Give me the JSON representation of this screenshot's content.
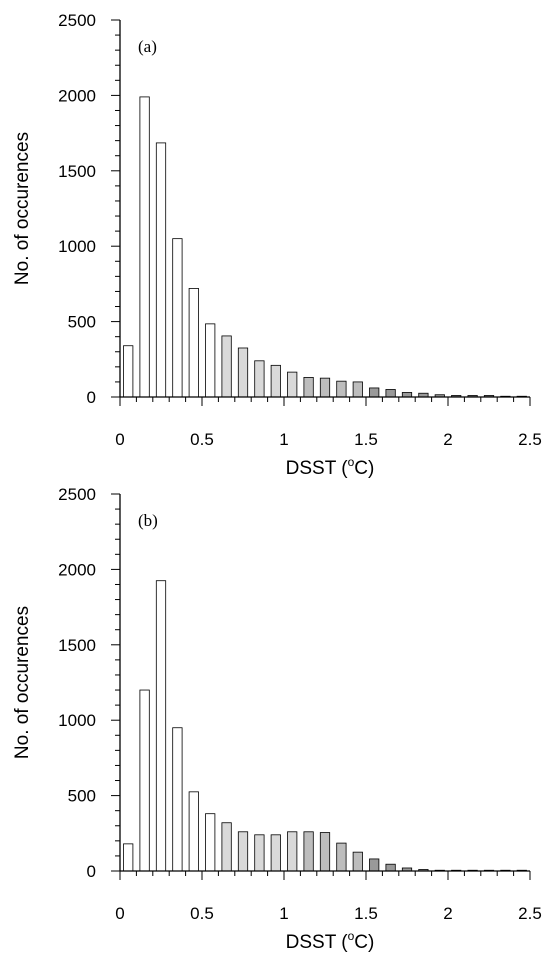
{
  "chart_data": [
    {
      "type": "bar",
      "annotation": "(a)",
      "xlabel_main": "DSST (",
      "xlabel_sup": "o",
      "xlabel_end": "C)",
      "ylabel": "No. of occurences",
      "xlim": [
        0,
        2.5
      ],
      "ylim": [
        0,
        2500
      ],
      "bin_width": 0.1,
      "x": [
        0.05,
        0.15,
        0.25,
        0.35,
        0.45,
        0.55,
        0.65,
        0.75,
        0.85,
        0.95,
        1.05,
        1.15,
        1.25,
        1.35,
        1.45,
        1.55,
        1.65,
        1.75,
        1.85,
        1.95,
        2.05,
        2.15,
        2.25,
        2.35,
        2.45
      ],
      "values": [
        340,
        1990,
        1685,
        1050,
        720,
        485,
        405,
        325,
        240,
        210,
        165,
        130,
        125,
        105,
        100,
        60,
        50,
        30,
        25,
        15,
        10,
        10,
        10,
        5,
        5
      ],
      "colors": [
        "#ffffff",
        "#ffffff",
        "#ffffff",
        "#ffffff",
        "#ffffff",
        "#ffffff",
        "#d9d9d9",
        "#d9d9d9",
        "#d9d9d9",
        "#d9d9d9",
        "#d9d9d9",
        "#bdbdbd",
        "#bdbdbd",
        "#bdbdbd",
        "#bdbdbd",
        "#999999",
        "#999999",
        "#999999",
        "#999999",
        "#999999",
        "#7a7a7a",
        "#7a7a7a",
        "#7a7a7a",
        "#7a7a7a",
        "#7a7a7a"
      ],
      "xticks": [
        "0",
        "0.5",
        "1",
        "1.5",
        "2",
        "2.5"
      ],
      "yticks": [
        "0",
        "500",
        "1000",
        "1500",
        "2000",
        "2500"
      ],
      "grid": false
    },
    {
      "type": "bar",
      "annotation": "(b)",
      "xlabel_main": "DSST (",
      "xlabel_sup": "o",
      "xlabel_end": "C)",
      "ylabel": "No. of occurences",
      "xlim": [
        0,
        2.5
      ],
      "ylim": [
        0,
        2500
      ],
      "bin_width": 0.1,
      "x": [
        0.05,
        0.15,
        0.25,
        0.35,
        0.45,
        0.55,
        0.65,
        0.75,
        0.85,
        0.95,
        1.05,
        1.15,
        1.25,
        1.35,
        1.45,
        1.55,
        1.65,
        1.75,
        1.85,
        1.95,
        2.05,
        2.15,
        2.25,
        2.35,
        2.45
      ],
      "values": [
        180,
        1200,
        1925,
        950,
        525,
        380,
        320,
        260,
        240,
        240,
        260,
        260,
        255,
        185,
        125,
        80,
        45,
        20,
        10,
        5,
        5,
        5,
        5,
        5,
        5
      ],
      "colors": [
        "#ffffff",
        "#ffffff",
        "#ffffff",
        "#ffffff",
        "#ffffff",
        "#ffffff",
        "#d9d9d9",
        "#d9d9d9",
        "#d9d9d9",
        "#d9d9d9",
        "#d9d9d9",
        "#bdbdbd",
        "#bdbdbd",
        "#bdbdbd",
        "#bdbdbd",
        "#999999",
        "#999999",
        "#999999",
        "#999999",
        "#999999",
        "#7a7a7a",
        "#7a7a7a",
        "#7a7a7a",
        "#7a7a7a",
        "#7a7a7a"
      ],
      "xticks": [
        "0",
        "0.5",
        "1",
        "1.5",
        "2",
        "2.5"
      ],
      "yticks": [
        "0",
        "500",
        "1000",
        "1500",
        "2000",
        "2500"
      ],
      "grid": false
    }
  ]
}
